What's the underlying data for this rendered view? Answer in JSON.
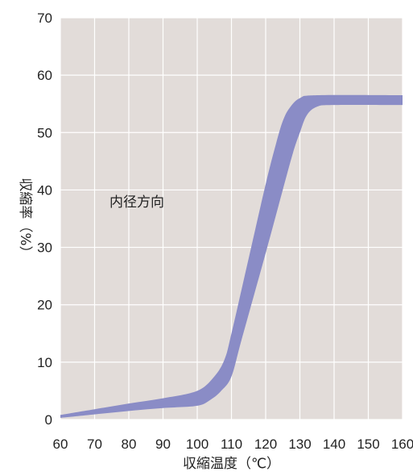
{
  "chart_data": {
    "type": "area",
    "xlabel": "収縮温度（℃）",
    "ylabel": "収縮率（%）",
    "xlim": [
      60,
      160
    ],
    "ylim": [
      0,
      70
    ],
    "xticks": [
      60,
      70,
      80,
      90,
      100,
      110,
      120,
      130,
      140,
      150,
      160
    ],
    "yticks": [
      0,
      10,
      20,
      30,
      40,
      50,
      60,
      70
    ],
    "grid": true,
    "annotation": "内径方向",
    "colors": {
      "plot_bg": "#e2dcd9",
      "grid": "#ffffff",
      "band": "#8a8cc6"
    },
    "band": {
      "upper": [
        [
          60,
          0.8
        ],
        [
          70,
          1.8
        ],
        [
          80,
          2.8
        ],
        [
          90,
          3.7
        ],
        [
          100,
          5.0
        ],
        [
          105,
          7.5
        ],
        [
          108,
          10.5
        ],
        [
          110,
          15.0
        ],
        [
          115,
          28.0
        ],
        [
          120,
          41.0
        ],
        [
          123,
          48.0
        ],
        [
          125,
          52.0
        ],
        [
          127,
          54.3
        ],
        [
          130,
          56.0
        ],
        [
          135,
          56.5
        ],
        [
          160,
          56.5
        ]
      ],
      "lower": [
        [
          60,
          0.3
        ],
        [
          70,
          0.9
        ],
        [
          80,
          1.5
        ],
        [
          90,
          2.0
        ],
        [
          100,
          2.4
        ],
        [
          104,
          3.5
        ],
        [
          107,
          5.0
        ],
        [
          110,
          7.5
        ],
        [
          113,
          14.0
        ],
        [
          120,
          29.0
        ],
        [
          125,
          40.0
        ],
        [
          128,
          46.5
        ],
        [
          130,
          50.0
        ],
        [
          132,
          53.0
        ],
        [
          135,
          54.5
        ],
        [
          140,
          54.8
        ],
        [
          160,
          54.8
        ]
      ]
    }
  }
}
